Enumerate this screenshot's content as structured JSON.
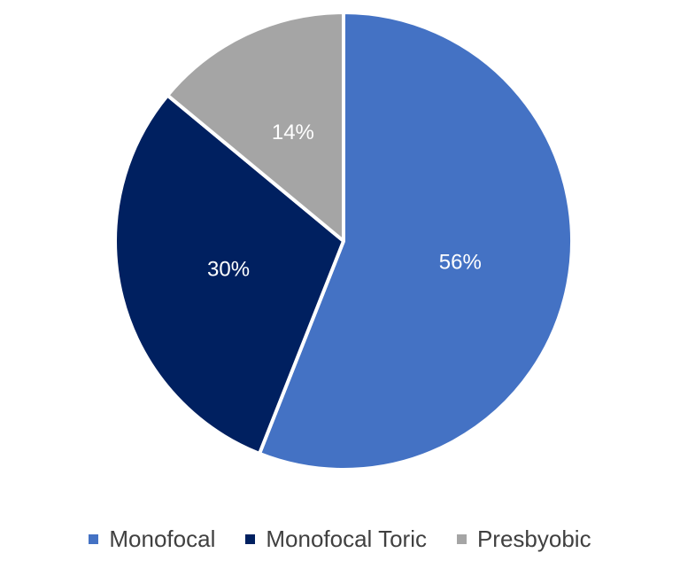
{
  "chart_data": {
    "type": "pie",
    "categories": [
      "Monofocal",
      "Monofocal Toric",
      "Presbyobic"
    ],
    "values": [
      56,
      30,
      14
    ],
    "data_labels": [
      "56%",
      "30%",
      "14%"
    ],
    "colors": [
      "#4472c4",
      "#002060",
      "#a5a5a5"
    ],
    "label_colors": [
      "#ffffff",
      "#ffffff",
      "#ffffff"
    ],
    "legend_position": "bottom",
    "start": "top, clockwise"
  }
}
